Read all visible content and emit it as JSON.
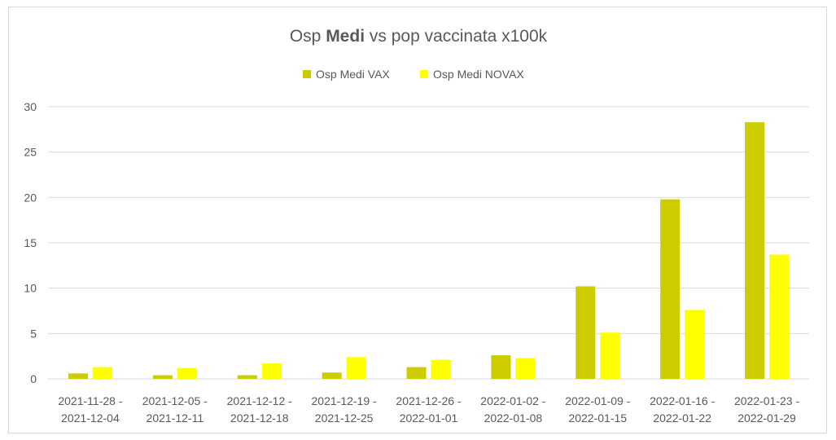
{
  "chart_data": {
    "type": "bar",
    "title": {
      "prefix": "Osp ",
      "bold": "Medi",
      "suffix": " vs pop vaccinata x100k"
    },
    "categories": [
      [
        "2021-11-28 -",
        "2021-12-04"
      ],
      [
        "2021-12-05 -",
        "2021-12-11"
      ],
      [
        "2021-12-12 -",
        "2021-12-18"
      ],
      [
        "2021-12-19 -",
        "2021-12-25"
      ],
      [
        "2021-12-26 -",
        "2022-01-01"
      ],
      [
        "2022-01-02 -",
        "2022-01-08"
      ],
      [
        "2022-01-09 -",
        "2022-01-15"
      ],
      [
        "2022-01-16 -",
        "2022-01-22"
      ],
      [
        "2022-01-23 -",
        "2022-01-29"
      ]
    ],
    "series": [
      {
        "name": "Osp Medi VAX",
        "color": "#cccc00",
        "values": [
          0.6,
          0.4,
          0.4,
          0.7,
          1.3,
          2.6,
          10.2,
          19.8,
          28.3
        ]
      },
      {
        "name": "Osp Medi NOVAX",
        "color": "#ffff00",
        "values": [
          1.3,
          1.2,
          1.7,
          2.4,
          2.1,
          2.3,
          5.1,
          7.6,
          13.7
        ]
      }
    ],
    "ylim": [
      0,
      30
    ],
    "yticks": [
      0,
      5,
      10,
      15,
      20,
      25,
      30
    ],
    "grid": true,
    "gridColor": "#d9d9d9",
    "legend_position": "top"
  }
}
